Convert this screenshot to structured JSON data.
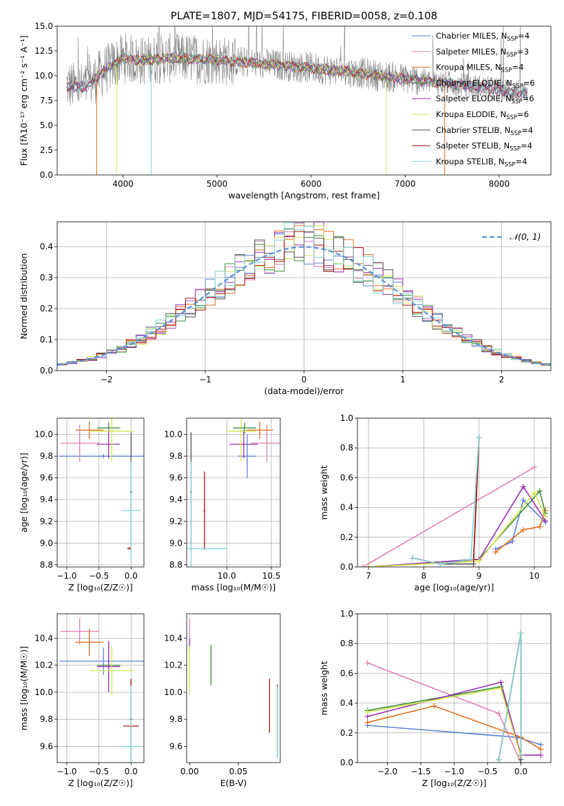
{
  "title": "PLATE=1807, MJD=54175, FIBERID=0058, z=0.108",
  "colors": {
    "chabrier_miles": "#5b7fd6",
    "salpeter_miles": "#e07fb6",
    "kroupa_miles": "#e06a1a",
    "chabrier_elodie": "#3a8c3a",
    "salpeter_elodie": "#9a2fb0",
    "kroupa_elodie": "#d4e64a",
    "chabrier_stelib": "#555555",
    "salpeter_stelib": "#b01010",
    "kroupa_stelib": "#7fd8d8",
    "gaussian": "#5b8fd6",
    "spectrum_gray": "#808080"
  },
  "chart_data": [
    {
      "type": "line",
      "panel": "spectrum",
      "title": "PLATE=1807, MJD=54175, FIBERID=0058, z=0.108",
      "xlabel": "wavelength [Angstrom, rest frame]",
      "ylabel": "Flux [fλ10⁻¹⁷ erg cm⁻² s⁻¹ A⁻¹]",
      "xlim": [
        3300,
        8550
      ],
      "ylim": [
        0,
        15
      ],
      "xticks": [
        "4000",
        "5000",
        "6000",
        "7000",
        "8000"
      ],
      "yticks": [
        "0.0",
        "2.5",
        "5.0",
        "7.5",
        "10.0",
        "12.5",
        "15.0"
      ],
      "legend": "top-right",
      "series": [
        {
          "name": "Chabrier MILES, N",
          "sub": "SSP",
          "tail": "=4"
        },
        {
          "name": "Salpeter MILES, N",
          "sub": "SSP",
          "tail": "=3"
        },
        {
          "name": "Kroupa MILES, N",
          "sub": "SSP",
          "tail": "=4"
        },
        {
          "name": "Chabrier ELODIE, N",
          "sub": "SSP",
          "tail": "=6"
        },
        {
          "name": "Salpeter ELODIE, N",
          "sub": "SSP",
          "tail": "=6"
        },
        {
          "name": "Kroupa ELODIE, N",
          "sub": "SSP",
          "tail": "=6"
        },
        {
          "name": "Chabrier STELIB, N",
          "sub": "SSP",
          "tail": "=4"
        },
        {
          "name": "Salpeter STELIB, N",
          "sub": "SSP",
          "tail": "=4"
        },
        {
          "name": "Kroupa STELIB, N",
          "sub": "SSP",
          "tail": "=4"
        }
      ],
      "continuum": {
        "x": [
          3400,
          3600,
          3800,
          4000,
          4200,
          4500,
          5000,
          5500,
          6000,
          6500,
          7000,
          7500,
          8000,
          8300
        ],
        "y": [
          9.0,
          8.8,
          10.5,
          11.8,
          11.5,
          11.8,
          11.6,
          11.2,
          10.8,
          10.3,
          9.7,
          9.2,
          8.6,
          8.2
        ]
      }
    },
    {
      "type": "bar",
      "panel": "residuals",
      "xlabel": "(data-model)/error",
      "ylabel": "Normed distribution",
      "xlim": [
        -2.5,
        2.5
      ],
      "ylim": [
        0,
        0.48
      ],
      "xticks": [
        "−2",
        "−1",
        "0",
        "1",
        "2"
      ],
      "yticks": [
        "0.0",
        "0.1",
        "0.2",
        "0.3",
        "0.4"
      ],
      "legend_label": "𝒩(0, 1)",
      "grid": true
    },
    {
      "type": "scatter",
      "panel": "age-vs-Z",
      "xlabel": "Z [log₁₀(Z/Z☉)]",
      "ylabel": "age  [log₁₀(age/yr)]",
      "xlim": [
        -1.15,
        0.2
      ],
      "ylim": [
        8.78,
        10.15
      ],
      "xticks": [
        "−1.0",
        "−0.5",
        "0.0"
      ],
      "yticks": [
        "8.8",
        "9.0",
        "9.2",
        "9.4",
        "9.6",
        "9.8",
        "10.0"
      ],
      "points": [
        {
          "c": "chabrier_miles",
          "x": -0.43,
          "xe": 0.68,
          "y": 9.8,
          "ye": 0.02
        },
        {
          "c": "salpeter_miles",
          "x": -0.8,
          "xe": 0.3,
          "y": 9.92,
          "ye": 0.17
        },
        {
          "c": "kroupa_miles",
          "x": -0.65,
          "xe": 0.22,
          "y": 10.04,
          "ye": 0.08
        },
        {
          "c": "chabrier_elodie",
          "x": -0.35,
          "xe": 0.18,
          "y": 10.06,
          "ye": 0.05
        },
        {
          "c": "salpeter_elodie",
          "x": -0.35,
          "xe": 0.18,
          "y": 9.91,
          "ye": 0.13
        },
        {
          "c": "kroupa_elodie",
          "x": -0.3,
          "xe": 0.35,
          "y": 10.03,
          "ye": 0.28
        },
        {
          "c": "chabrier_stelib",
          "x": 0.0,
          "xe": 0.02,
          "y": 9.47,
          "ye": 0.55
        },
        {
          "c": "salpeter_stelib",
          "x": -0.03,
          "xe": 0.03,
          "y": 8.95,
          "ye": 0.01
        },
        {
          "c": "kroupa_stelib",
          "x": 0.0,
          "xe": 0.15,
          "y": 9.3,
          "ye": 0.45
        }
      ]
    },
    {
      "type": "scatter",
      "panel": "age-vs-mass",
      "xlabel": "mass [log₁₀(M/M☉)]",
      "ylabel": "",
      "xlim": [
        9.55,
        10.6
      ],
      "ylim": [
        8.78,
        10.15
      ],
      "xticks": [
        "9.5",
        "10.0",
        "10.5"
      ],
      "yticks": [
        "8.8",
        "9.0",
        "9.2",
        "9.4",
        "9.6",
        "9.8",
        "10.0"
      ],
      "points": [
        {
          "c": "chabrier_miles",
          "x": 10.23,
          "xe": 0.1,
          "y": 9.8,
          "ye": 0.2
        },
        {
          "c": "salpeter_miles",
          "x": 10.45,
          "xe": 0.18,
          "y": 9.92,
          "ye": 0.17
        },
        {
          "c": "kroupa_miles",
          "x": 10.37,
          "xe": 0.15,
          "y": 10.04,
          "ye": 0.08
        },
        {
          "c": "chabrier_elodie",
          "x": 10.2,
          "xe": 0.13,
          "y": 10.06,
          "ye": 0.05
        },
        {
          "c": "salpeter_elodie",
          "x": 10.19,
          "xe": 0.16,
          "y": 9.91,
          "ye": 0.13
        },
        {
          "c": "kroupa_elodie",
          "x": 10.16,
          "xe": 0.17,
          "y": 10.03,
          "ye": 0.28
        },
        {
          "c": "chabrier_stelib",
          "x": 9.6,
          "xe": 0.01,
          "y": 9.47,
          "ye": 0.55
        },
        {
          "c": "salpeter_stelib",
          "x": 9.75,
          "xe": 0.01,
          "y": 9.3,
          "ye": 0.36
        },
        {
          "c": "kroupa_stelib",
          "x": 9.6,
          "xe": 0.4,
          "y": 8.95,
          "ye": 0.8
        }
      ]
    },
    {
      "type": "line",
      "panel": "weight-vs-age",
      "xlabel": "age  [log₁₀(age/yr)]",
      "ylabel": "mass weight",
      "xlim": [
        6.8,
        10.3
      ],
      "ylim": [
        0,
        1.0
      ],
      "xticks": [
        "7",
        "8",
        "9",
        "10"
      ],
      "yticks": [
        "0.0",
        "0.2",
        "0.4",
        "0.6",
        "0.8",
        "1.0"
      ],
      "series": [
        {
          "c": "chabrier_miles",
          "x": [
            9.3,
            9.6,
            9.8,
            10.2
          ],
          "y": [
            0.12,
            0.17,
            0.45,
            0.3
          ]
        },
        {
          "c": "salpeter_miles",
          "x": [
            6.9,
            10.0
          ],
          "y": [
            0.0,
            0.67
          ]
        },
        {
          "c": "kroupa_miles",
          "x": [
            9.3,
            9.8,
            10.1,
            10.2
          ],
          "y": [
            0.1,
            0.25,
            0.27,
            0.38
          ]
        },
        {
          "c": "chabrier_elodie",
          "x": [
            7.0,
            8.9,
            9.0,
            10.1,
            10.2
          ],
          "y": [
            0.0,
            0.05,
            0.05,
            0.51,
            0.36
          ]
        },
        {
          "c": "salpeter_elodie",
          "x": [
            7.0,
            8.9,
            9.0,
            9.8,
            10.2
          ],
          "y": [
            0.0,
            0.05,
            0.05,
            0.54,
            0.31
          ]
        },
        {
          "c": "kroupa_elodie",
          "x": [
            7.0,
            9.0,
            10.0,
            10.2
          ],
          "y": [
            0.0,
            0.04,
            0.5,
            0.34
          ]
        },
        {
          "c": "chabrier_stelib",
          "x": [
            7.8,
            8.3,
            8.9,
            9.0
          ],
          "y": [
            0.06,
            0.02,
            0.02,
            0.87
          ]
        },
        {
          "c": "salpeter_stelib",
          "x": [
            7.8,
            8.3,
            8.9,
            9.0
          ],
          "y": [
            0.06,
            0.02,
            0.05,
            0.87
          ]
        },
        {
          "c": "kroupa_stelib",
          "x": [
            7.8,
            8.3,
            8.85,
            9.0
          ],
          "y": [
            0.06,
            0.02,
            0.05,
            0.87
          ]
        }
      ]
    },
    {
      "type": "scatter",
      "panel": "mass-vs-Z",
      "xlabel": "Z [log₁₀(Z/Z☉)]",
      "ylabel": "mass [log₁₀(M/M☉)]",
      "xlim": [
        -1.15,
        0.2
      ],
      "ylim": [
        9.48,
        10.58
      ],
      "xticks": [
        "−1.0",
        "−0.5",
        "0.0"
      ],
      "yticks": [
        "9.6",
        "9.8",
        "10.0",
        "10.2",
        "10.4"
      ],
      "points": [
        {
          "c": "chabrier_miles",
          "x": -0.43,
          "xe": 0.68,
          "y": 10.23,
          "ye": 0.1
        },
        {
          "c": "salpeter_miles",
          "x": -0.8,
          "xe": 0.3,
          "y": 10.45,
          "ye": 0.1
        },
        {
          "c": "kroupa_miles",
          "x": -0.65,
          "xe": 0.22,
          "y": 10.37,
          "ye": 0.1
        },
        {
          "c": "chabrier_elodie",
          "x": -0.35,
          "xe": 0.18,
          "y": 10.2,
          "ye": 0.15
        },
        {
          "c": "salpeter_elodie",
          "x": -0.35,
          "xe": 0.18,
          "y": 10.19,
          "ye": 0.19
        },
        {
          "c": "kroupa_elodie",
          "x": -0.3,
          "xe": 0.35,
          "y": 10.16,
          "ye": 0.18
        },
        {
          "c": "chabrier_stelib",
          "x": 0.0,
          "xe": 0.02,
          "y": 9.8,
          "ye": 0.28
        },
        {
          "c": "salpeter_stelib",
          "x": 0.0,
          "xe": 0.12,
          "y": 9.75,
          "ye": 0.35
        },
        {
          "c": "kroupa_stelib",
          "x": 0.0,
          "xe": 0.15,
          "y": 9.6,
          "ye": 0.45
        }
      ]
    },
    {
      "type": "scatter",
      "panel": "mass-vs-ebv",
      "xlabel": "E(B-V)",
      "ylabel": "",
      "xlim": [
        -0.003,
        0.093
      ],
      "ylim": [
        9.48,
        10.58
      ],
      "xticks": [
        "0.00",
        "0.05"
      ],
      "yticks": [
        "9.6",
        "9.8",
        "10.0",
        "10.2",
        "10.4"
      ],
      "points": [
        {
          "c": "salpeter_miles",
          "x": 0.0,
          "xe": 0,
          "y": 10.45,
          "ye": 0.1
        },
        {
          "c": "salpeter_elodie",
          "x": 0.0,
          "xe": 0,
          "y": 10.35,
          "ye": 0.05
        },
        {
          "c": "kroupa_elodie",
          "x": 0.0,
          "xe": 0,
          "y": 10.16,
          "ye": 0.18
        },
        {
          "c": "chabrier_elodie",
          "x": 0.022,
          "xe": 0,
          "y": 10.2,
          "ye": 0.15
        },
        {
          "c": "salpeter_stelib",
          "x": 0.082,
          "xe": 0,
          "y": 9.9,
          "ye": 0.2
        },
        {
          "c": "chabrier_stelib",
          "x": 0.09,
          "xe": 0,
          "y": 9.79,
          "ye": 0.27
        },
        {
          "c": "kroupa_stelib",
          "x": 0.09,
          "xe": 0,
          "y": 9.78,
          "ye": 0.26
        }
      ]
    },
    {
      "type": "line",
      "panel": "weight-vs-Z",
      "xlabel": "Z [log₁₀(Z/Z☉)]",
      "ylabel": "mass weight",
      "xlim": [
        -2.45,
        0.45
      ],
      "ylim": [
        0,
        1.0
      ],
      "xticks": [
        "−2.0",
        "−1.5",
        "−1.0",
        "−0.5",
        "0.0"
      ],
      "yticks": [
        "0.0",
        "0.2",
        "0.4",
        "0.6",
        "0.8",
        "1.0"
      ],
      "series": [
        {
          "c": "chabrier_miles",
          "x": [
            -2.3,
            -0.05,
            0.3
          ],
          "y": [
            0.25,
            0.17,
            0.12
          ]
        },
        {
          "c": "salpeter_miles",
          "x": [
            -2.3,
            -0.33,
            0.0
          ],
          "y": [
            0.67,
            0.33,
            0.0
          ]
        },
        {
          "c": "kroupa_miles",
          "x": [
            -2.3,
            -1.3,
            0.0,
            0.3
          ],
          "y": [
            0.27,
            0.38,
            0.17,
            0.09
          ]
        },
        {
          "c": "chabrier_elodie",
          "x": [
            -2.3,
            -0.3,
            0.0
          ],
          "y": [
            0.35,
            0.51,
            0.05
          ]
        },
        {
          "c": "salpeter_elodie",
          "x": [
            -2.3,
            -0.3,
            0.0,
            0.3
          ],
          "y": [
            0.31,
            0.54,
            0.05,
            0.05
          ]
        },
        {
          "c": "kroupa_elodie",
          "x": [
            -2.3,
            -0.3,
            0.0
          ],
          "y": [
            0.34,
            0.5,
            0.04
          ]
        },
        {
          "c": "chabrier_stelib",
          "x": [
            -0.33,
            0.0,
            0.0
          ],
          "y": [
            0.02,
            0.87,
            0.02
          ]
        },
        {
          "c": "salpeter_stelib",
          "x": [
            -0.33,
            0.0,
            0.0
          ],
          "y": [
            0.02,
            0.87,
            0.05
          ]
        },
        {
          "c": "kroupa_stelib",
          "x": [
            -0.33,
            0.0,
            0.0
          ],
          "y": [
            0.02,
            0.87,
            0.05
          ]
        }
      ]
    }
  ]
}
